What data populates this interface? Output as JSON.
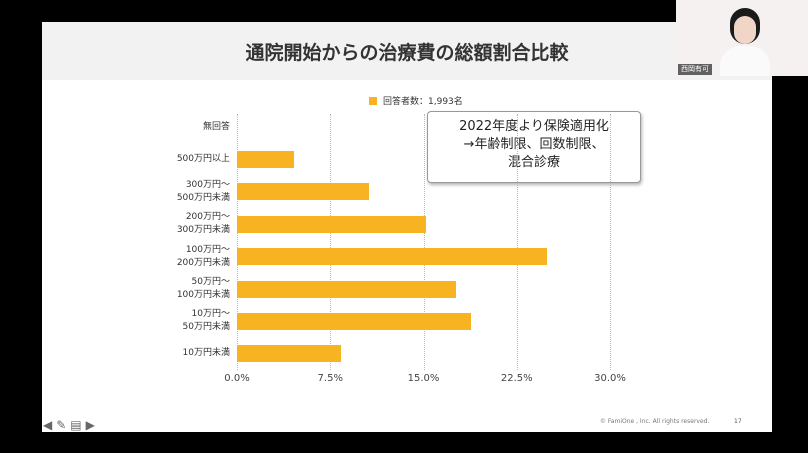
{
  "chart_data": {
    "type": "barh",
    "title": "通院開始からの治療費の総額割合比較",
    "categories": [
      "無回答",
      "500万円以上",
      "300万円〜\n500万円未満",
      "200万円〜\n300万円未満",
      "100万円〜\n200万円未満",
      "50万円〜\n100万円未満",
      "10万円〜\n50万円未満",
      "10万円未満"
    ],
    "series": [
      {
        "name": "回答者数：1,993名",
        "color": "#f8b323",
        "values": [
          0,
          4.6,
          10.6,
          15.2,
          24.9,
          17.6,
          18.8,
          8.4
        ]
      }
    ],
    "xlim": [
      0,
      30
    ],
    "xticks": [
      {
        "value": 0,
        "label": "0.0%"
      },
      {
        "value": 7.5,
        "label": "7.5%"
      },
      {
        "value": 15,
        "label": "15.0%"
      },
      {
        "value": 22.5,
        "label": "22.5%"
      },
      {
        "value": 30,
        "label": "30.0%"
      }
    ],
    "grid": true,
    "annotation": "2022年度より保険適用化\n→年齢制限、回数制限、\n混合診療"
  },
  "slide": {
    "copyright": "© FamiOne , Inc. All rights reserved.",
    "page": "17"
  },
  "participant": {
    "name": "西岡有可"
  }
}
